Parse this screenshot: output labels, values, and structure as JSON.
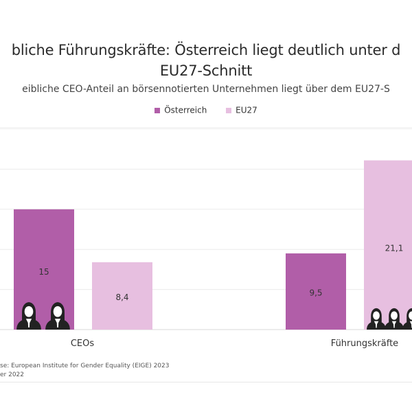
{
  "title_line1": "bliche Führungskräfte: Österreich liegt deutlich unter d",
  "title_line2": "EU27-Schnitt",
  "subtitle": "eibliche CEO-Anteil an börsennotierten Unternehmen liegt über dem EU27-S",
  "legend": [
    {
      "label": "Österreich",
      "color": "#b15ea8"
    },
    {
      "label": "EU27",
      "color": "#e7bfe0"
    }
  ],
  "source_line1": "se: European Institute for Gender Equality (EIGE) 2023",
  "source_line2": "er 2022",
  "chart_data": {
    "type": "bar",
    "categories": [
      "CEOs",
      "Führungskräfte"
    ],
    "series": [
      {
        "name": "Österreich",
        "values": [
          15,
          9.5
        ],
        "color": "#b15ea8"
      },
      {
        "name": "EU27",
        "values": [
          8.4,
          21.1
        ],
        "color": "#e7bfe0"
      }
    ],
    "data_labels": [
      [
        "15",
        "9,5"
      ],
      [
        "8,4",
        "21,1"
      ]
    ],
    "ylim": [
      0,
      25
    ],
    "grid": true,
    "legend_position": "top",
    "icon": "businesswoman-icon"
  }
}
